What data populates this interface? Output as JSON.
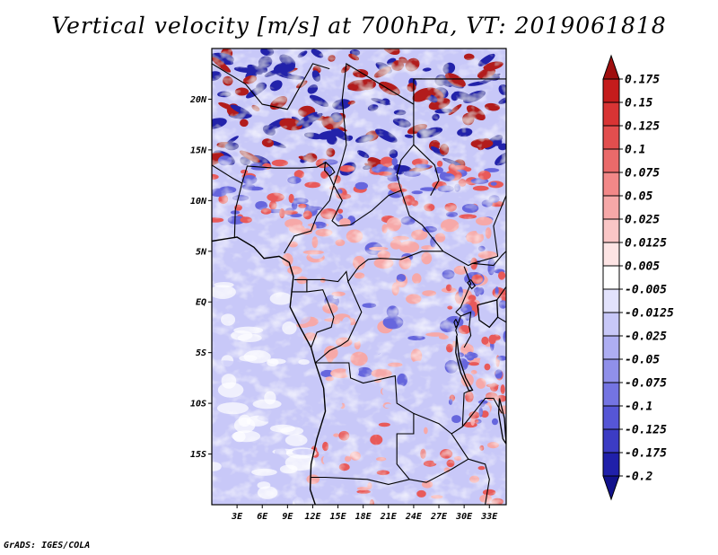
{
  "title": "Vertical velocity [m/s] at 700hPa, VT: 2019061818",
  "credit": "GrADS: IGES/COLA",
  "map": {
    "lon_range": [
      0,
      35
    ],
    "lat_range": [
      -20,
      25
    ],
    "lon_ticks": [
      "3E",
      "6E",
      "9E",
      "12E",
      "15E",
      "18E",
      "21E",
      "24E",
      "27E",
      "30E",
      "33E"
    ],
    "lat_ticks": [
      "20N",
      "15N",
      "10N",
      "5N",
      "EQ",
      "5S",
      "10S",
      "15S"
    ],
    "field_colors": {
      "strong_up": "#b21a1a",
      "up": "#e85a5a",
      "weak_up": "#f6a8a8",
      "weak_down": "#c8c8f8",
      "down": "#6666dd",
      "strong_down": "#2222aa"
    }
  },
  "colorbar": {
    "labels": [
      "0.175",
      "0.15",
      "0.125",
      "0.1",
      "0.075",
      "0.05",
      "0.025",
      "0.0125",
      "0.005",
      "-0.005",
      "-0.0125",
      "-0.025",
      "-0.05",
      "-0.075",
      "-0.1",
      "-0.125",
      "-0.175",
      "-0.2"
    ],
    "colors": [
      "#a00f0f",
      "#c41c1c",
      "#d83434",
      "#e24e4e",
      "#ea6a6a",
      "#f28888",
      "#f6a8a8",
      "#fac6c6",
      "#fde4e4",
      "#ffffff",
      "#e2e2fc",
      "#c8c8f8",
      "#aeaef2",
      "#9090ea",
      "#7474e2",
      "#5656d6",
      "#3c3cc4",
      "#2020aa",
      "#12128c"
    ]
  }
}
